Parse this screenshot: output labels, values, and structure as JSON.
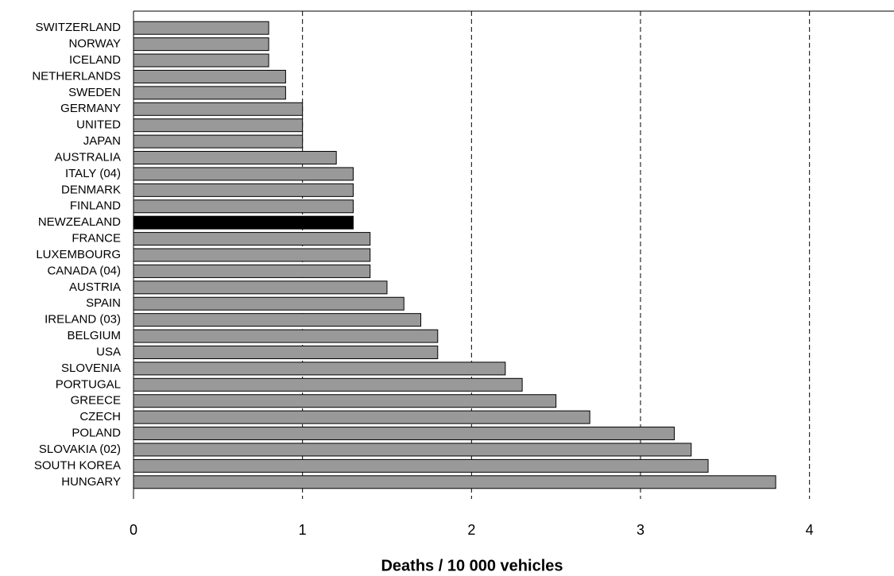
{
  "chart_data": {
    "type": "hbar",
    "x_label": "Deaths / 10 000 vehicles",
    "categories": [
      "SWITZERLAND",
      "NORWAY",
      "ICELAND",
      "NETHERLANDS",
      "SWEDEN",
      "GERMANY",
      "UNITED",
      "JAPAN",
      "AUSTRALIA",
      "ITALY (04)",
      "DENMARK",
      "FINLAND",
      "NEWZEALAND",
      "FRANCE",
      "LUXEMBOURG",
      "CANADA (04)",
      "AUSTRIA",
      "SPAIN",
      "IRELAND (03)",
      "BELGIUM",
      "USA",
      "SLOVENIA",
      "PORTUGAL",
      "GREECE",
      "CZECH",
      "POLAND",
      "SLOVAKIA (02)",
      "SOUTH KOREA",
      "HUNGARY"
    ],
    "values": [
      0.8,
      0.8,
      0.8,
      0.9,
      0.9,
      1.0,
      1.0,
      1.0,
      1.2,
      1.3,
      1.3,
      1.3,
      1.3,
      1.4,
      1.4,
      1.4,
      1.5,
      1.6,
      1.7,
      1.8,
      1.8,
      2.2,
      2.3,
      2.5,
      2.7,
      3.2,
      3.3,
      3.4,
      3.8
    ],
    "colors": [
      "#999999",
      "#999999",
      "#999999",
      "#999999",
      "#999999",
      "#999999",
      "#999999",
      "#999999",
      "#999999",
      "#999999",
      "#999999",
      "#999999",
      "#000000",
      "#999999",
      "#999999",
      "#999999",
      "#999999",
      "#999999",
      "#999999",
      "#999999",
      "#999999",
      "#999999",
      "#999999",
      "#999999",
      "#999999",
      "#999999",
      "#999999",
      "#999999",
      "#999999"
    ],
    "xlim": [
      0,
      4.5
    ],
    "xticks": [
      0,
      1,
      2,
      3,
      4
    ],
    "grid": true
  }
}
